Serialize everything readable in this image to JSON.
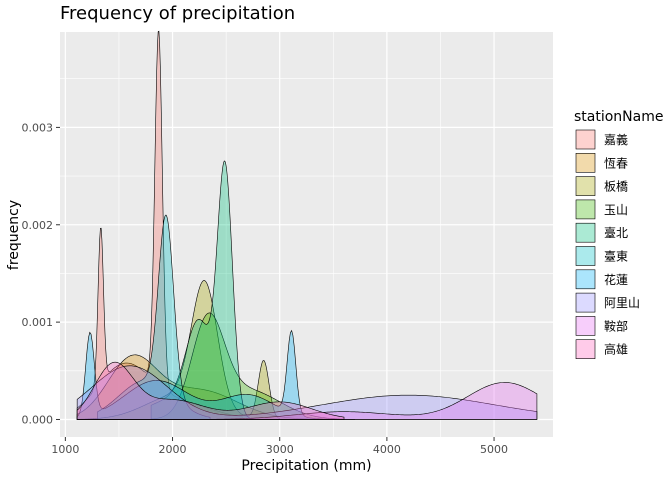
{
  "chart_data": {
    "type": "area",
    "title": "Frequency of precipitation",
    "xlabel": "Precipitation (mm)",
    "ylabel": "frequency",
    "xlim": [
      950,
      5550
    ],
    "ylim": [
      -0.00018,
      0.00398
    ],
    "x_ticks": [
      1000,
      2000,
      3000,
      4000,
      5000
    ],
    "x_tick_labels": [
      "1000",
      "2000",
      "3000",
      "4000",
      "5000"
    ],
    "y_ticks": [
      0,
      0.001,
      0.002,
      0.003
    ],
    "y_tick_labels": [
      "0.000",
      "0.001",
      "0.002",
      "0.003"
    ],
    "grid": true,
    "legend_title": "stationName",
    "legend_position": "right",
    "series": [
      {
        "name": "嘉義",
        "color": "#F8766D",
        "peaks": [
          [
            1330,
            0.0016,
            25
          ],
          [
            1870,
            0.00365,
            35
          ],
          [
            1550,
            0.00055,
            250
          ],
          [
            2100,
            0.00015,
            300
          ]
        ],
        "range": [
          1110,
          2650
        ]
      },
      {
        "name": "恆春",
        "color": "#D89000",
        "peaks": [
          [
            1620,
            0.0006,
            230
          ],
          [
            2250,
            0.0003,
            350
          ]
        ],
        "range": [
          1110,
          3600
        ]
      },
      {
        "name": "板橋",
        "color": "#A3A500",
        "peaks": [
          [
            2300,
            0.00125,
            120
          ],
          [
            2850,
            0.0006,
            50
          ],
          [
            2050,
            0.00025,
            300
          ]
        ],
        "range": [
          1110,
          3000
        ]
      },
      {
        "name": "玉山",
        "color": "#39B600",
        "peaks": [
          [
            2330,
            0.00095,
            150
          ],
          [
            2700,
            0.0003,
            300
          ]
        ],
        "range": [
          1800,
          3600
        ]
      },
      {
        "name": "臺北",
        "color": "#00BF7D",
        "peaks": [
          [
            2490,
            0.0025,
            70
          ],
          [
            2250,
            0.0009,
            120
          ],
          [
            2000,
            0.0002,
            250
          ]
        ],
        "range": [
          1800,
          3000
        ]
      },
      {
        "name": "臺東",
        "color": "#00BFC4",
        "peaks": [
          [
            1940,
            0.0018,
            70
          ],
          [
            1750,
            0.0004,
            250
          ]
        ],
        "range": [
          1300,
          2350
        ]
      },
      {
        "name": "花蓮",
        "color": "#00B0F6",
        "peaks": [
          [
            1230,
            0.00085,
            40
          ],
          [
            3110,
            0.00085,
            40
          ],
          [
            1850,
            0.0004,
            300
          ],
          [
            2700,
            0.00025,
            250
          ]
        ],
        "range": [
          1110,
          3700
        ]
      },
      {
        "name": "阿里山",
        "color": "#9590FF",
        "peaks": [
          [
            1600,
            0.00055,
            350
          ],
          [
            4200,
            0.00025,
            800
          ]
        ],
        "range": [
          1110,
          5400
        ]
      },
      {
        "name": "鞍部",
        "color": "#E76BF3",
        "peaks": [
          [
            5100,
            0.00038,
            350
          ],
          [
            3600,
            8e-05,
            450
          ]
        ],
        "range": [
          2200,
          5400
        ]
      },
      {
        "name": "高雄",
        "color": "#FF62BC",
        "peaks": [
          [
            1450,
            0.00055,
            180
          ],
          [
            2000,
            0.0002,
            300
          ],
          [
            3000,
            0.00018,
            300
          ]
        ],
        "range": [
          1110,
          3600
        ]
      }
    ]
  }
}
